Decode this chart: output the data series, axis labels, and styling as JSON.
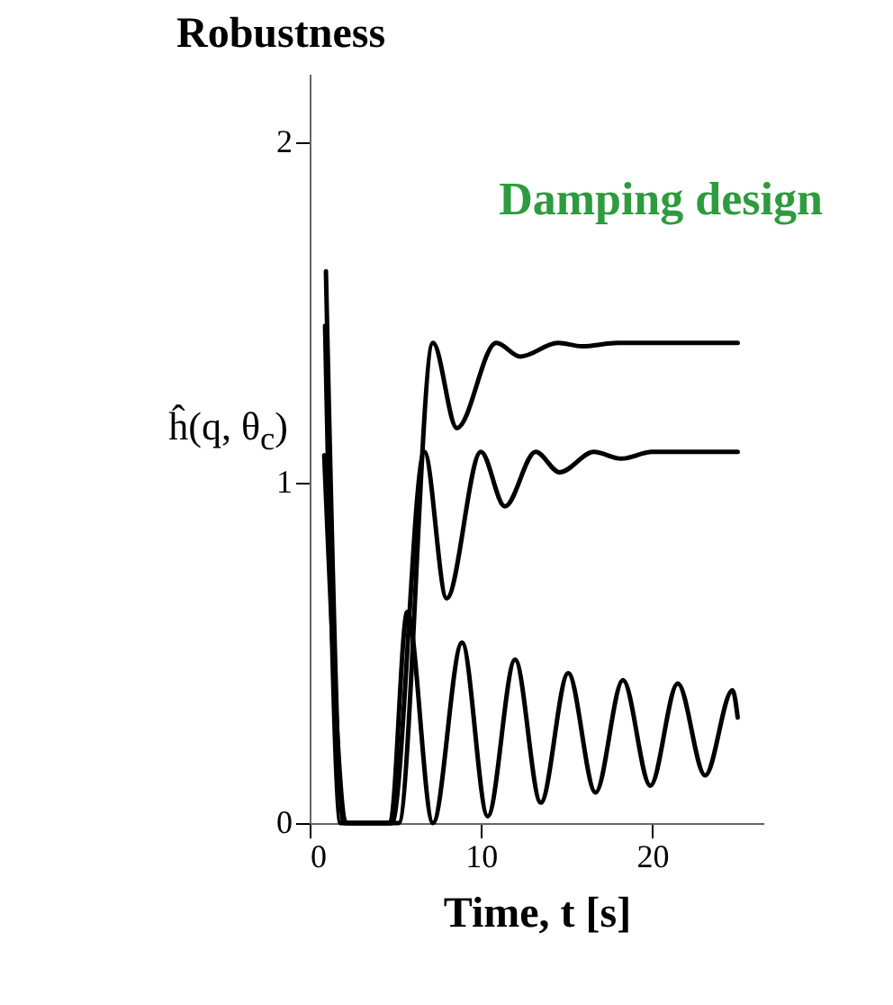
{
  "chart_data": {
    "type": "line",
    "title": "Robustness",
    "xlabel": "Time, t [s]",
    "ylabel": "ĥ(q, θ$_{c}$)",
    "annotations": [
      "Damping design"
    ],
    "xlim": [
      0,
      26.5
    ],
    "ylim": [
      0,
      2.2
    ],
    "xticks": [
      0,
      10,
      20
    ],
    "yticks": [
      0,
      1,
      2
    ],
    "grid": false,
    "legend": false,
    "marker": "none",
    "line_style": "solid",
    "series": [
      {
        "color": "#000000",
        "x": [
          0.95,
          2.0,
          5.2,
          7.2,
          8.6,
          10.9,
          12.3,
          14.5,
          15.9,
          18.0,
          20.0,
          25.0
        ],
        "values": [
          1.62,
          0,
          0,
          1.41,
          1.16,
          1.41,
          1.37,
          1.41,
          1.4,
          1.41,
          1.41,
          1.41
        ]
      },
      {
        "color": "#000000",
        "x": [
          0.9,
          1.8,
          4.8,
          6.7,
          8.0,
          10.0,
          11.4,
          13.2,
          14.6,
          16.6,
          18.2,
          20.0,
          25.0
        ],
        "values": [
          1.46,
          0,
          0,
          1.09,
          0.66,
          1.09,
          0.93,
          1.09,
          1.03,
          1.09,
          1.07,
          1.09,
          1.09
        ]
      },
      {
        "color": "#000000",
        "x": [
          0.85,
          2.2,
          4.7,
          5.7,
          7.2,
          8.9,
          10.4,
          12.0,
          13.5,
          15.1,
          16.7,
          18.3,
          19.9,
          21.5,
          23.1,
          24.7,
          25.0
        ],
        "values": [
          1.08,
          0,
          0,
          0.62,
          0,
          0.53,
          0.02,
          0.48,
          0.06,
          0.44,
          0.09,
          0.42,
          0.11,
          0.41,
          0.14,
          0.39,
          0.31
        ]
      }
    ]
  }
}
